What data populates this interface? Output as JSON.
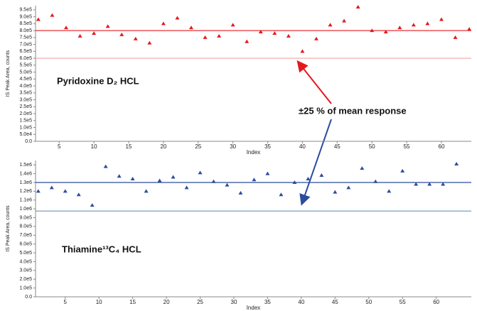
{
  "chart_data": [
    {
      "type": "scatter",
      "title": "Pyridoxine D₂ HCL",
      "x_label": "Index",
      "y_label": "IS Peak Area, counts",
      "annotation": "±25 % of mean response",
      "x": [
        2,
        4,
        6,
        8,
        10,
        12,
        14,
        16,
        18,
        20,
        22,
        24,
        26,
        28,
        30,
        32,
        34,
        36,
        38,
        40,
        42,
        44,
        46,
        48,
        50,
        52,
        54,
        56,
        58,
        60,
        62,
        64
      ],
      "series": [
        {
          "color": "#e3191c",
          "values": [
            880000,
            910000,
            820000,
            760000,
            780000,
            830000,
            770000,
            740000,
            710000,
            850000,
            890000,
            820000,
            750000,
            760000,
            840000,
            720000,
            790000,
            780000,
            760000,
            650000,
            740000,
            840000,
            870000,
            970000,
            800000,
            790000,
            820000,
            840000,
            850000,
            880000,
            750000,
            810000
          ]
        }
      ],
      "reference_lines": [
        {
          "value": 800000,
          "color": "#e3191c"
        },
        {
          "value": 600000,
          "color": "#f0a3a3"
        }
      ],
      "xlim": [
        1.6,
        64.3
      ],
      "ylim": [
        0,
        980000
      ],
      "xticks": [
        5,
        10,
        15,
        20,
        25,
        30,
        35,
        40,
        45,
        50,
        55,
        60
      ],
      "yticks": [
        {
          "value": 0,
          "label": "0.0"
        },
        {
          "value": 50000,
          "label": "5.0e4"
        },
        {
          "value": 100000,
          "label": "1.0e5"
        },
        {
          "value": 150000,
          "label": "1.5e5"
        },
        {
          "value": 200000,
          "label": "2.0e5"
        },
        {
          "value": 250000,
          "label": "2.5e5"
        },
        {
          "value": 300000,
          "label": "3.0e5"
        },
        {
          "value": 350000,
          "label": "3.5e5"
        },
        {
          "value": 400000,
          "label": "4.0e5"
        },
        {
          "value": 450000,
          "label": "4.5e5"
        },
        {
          "value": 500000,
          "label": "5.0e5"
        },
        {
          "value": 550000,
          "label": "5.5e5"
        },
        {
          "value": 600000,
          "label": "6.0e5"
        },
        {
          "value": 650000,
          "label": "6.5e5"
        },
        {
          "value": 700000,
          "label": "7.0e5"
        },
        {
          "value": 750000,
          "label": "7.5e5"
        },
        {
          "value": 800000,
          "label": "8.0e5"
        },
        {
          "value": 850000,
          "label": "8.5e5"
        },
        {
          "value": 900000,
          "label": "9.0e5"
        },
        {
          "value": 950000,
          "label": "9.5e5"
        }
      ]
    },
    {
      "type": "scatter",
      "title": "Thiamine¹³C₄ HCL",
      "x_label": "Index",
      "y_label": "IS Peak Area, counts",
      "x": [
        1,
        3,
        5,
        7,
        9,
        11,
        13,
        15,
        17,
        19,
        21,
        23,
        25,
        27,
        29,
        31,
        33,
        35,
        37,
        39,
        41,
        43,
        45,
        47,
        49,
        51,
        53,
        55,
        57,
        59,
        61,
        63
      ],
      "series": [
        {
          "color": "#2b4d9e",
          "values": [
            1200000,
            1240000,
            1200000,
            1160000,
            1040000,
            1480000,
            1370000,
            1340000,
            1200000,
            1320000,
            1360000,
            1240000,
            1410000,
            1310000,
            1270000,
            1180000,
            1330000,
            1400000,
            1160000,
            1300000,
            1340000,
            1380000,
            1190000,
            1240000,
            1460000,
            1310000,
            1200000,
            1430000,
            1280000,
            1280000,
            1280000,
            1510000
          ]
        }
      ],
      "reference_lines": [
        {
          "value": 1300000,
          "color": "#2b4d9e"
        },
        {
          "value": 975000,
          "color": "#7f9fbf"
        }
      ],
      "xlim": [
        0.6,
        65.2
      ],
      "ylim": [
        0,
        1550000
      ],
      "xticks": [
        5,
        10,
        15,
        20,
        25,
        30,
        35,
        40,
        45,
        50,
        55,
        60
      ],
      "yticks": [
        {
          "value": 0,
          "label": "0.0"
        },
        {
          "value": 100000,
          "label": "1.0e5"
        },
        {
          "value": 200000,
          "label": "2.0e5"
        },
        {
          "value": 300000,
          "label": "3.0e5"
        },
        {
          "value": 400000,
          "label": "4.0e5"
        },
        {
          "value": 500000,
          "label": "5.0e5"
        },
        {
          "value": 600000,
          "label": "6.0e5"
        },
        {
          "value": 700000,
          "label": "7.0e5"
        },
        {
          "value": 800000,
          "label": "8.0e5"
        },
        {
          "value": 900000,
          "label": "9.0e5"
        },
        {
          "value": 1000000,
          "label": "1.0e6"
        },
        {
          "value": 1100000,
          "label": "1.1e6"
        },
        {
          "value": 1200000,
          "label": "1.2e6"
        },
        {
          "value": 1300000,
          "label": "1.3e6"
        },
        {
          "value": 1400000,
          "label": "1.4e6"
        },
        {
          "value": 1500000,
          "label": "1.5e6"
        }
      ]
    }
  ]
}
